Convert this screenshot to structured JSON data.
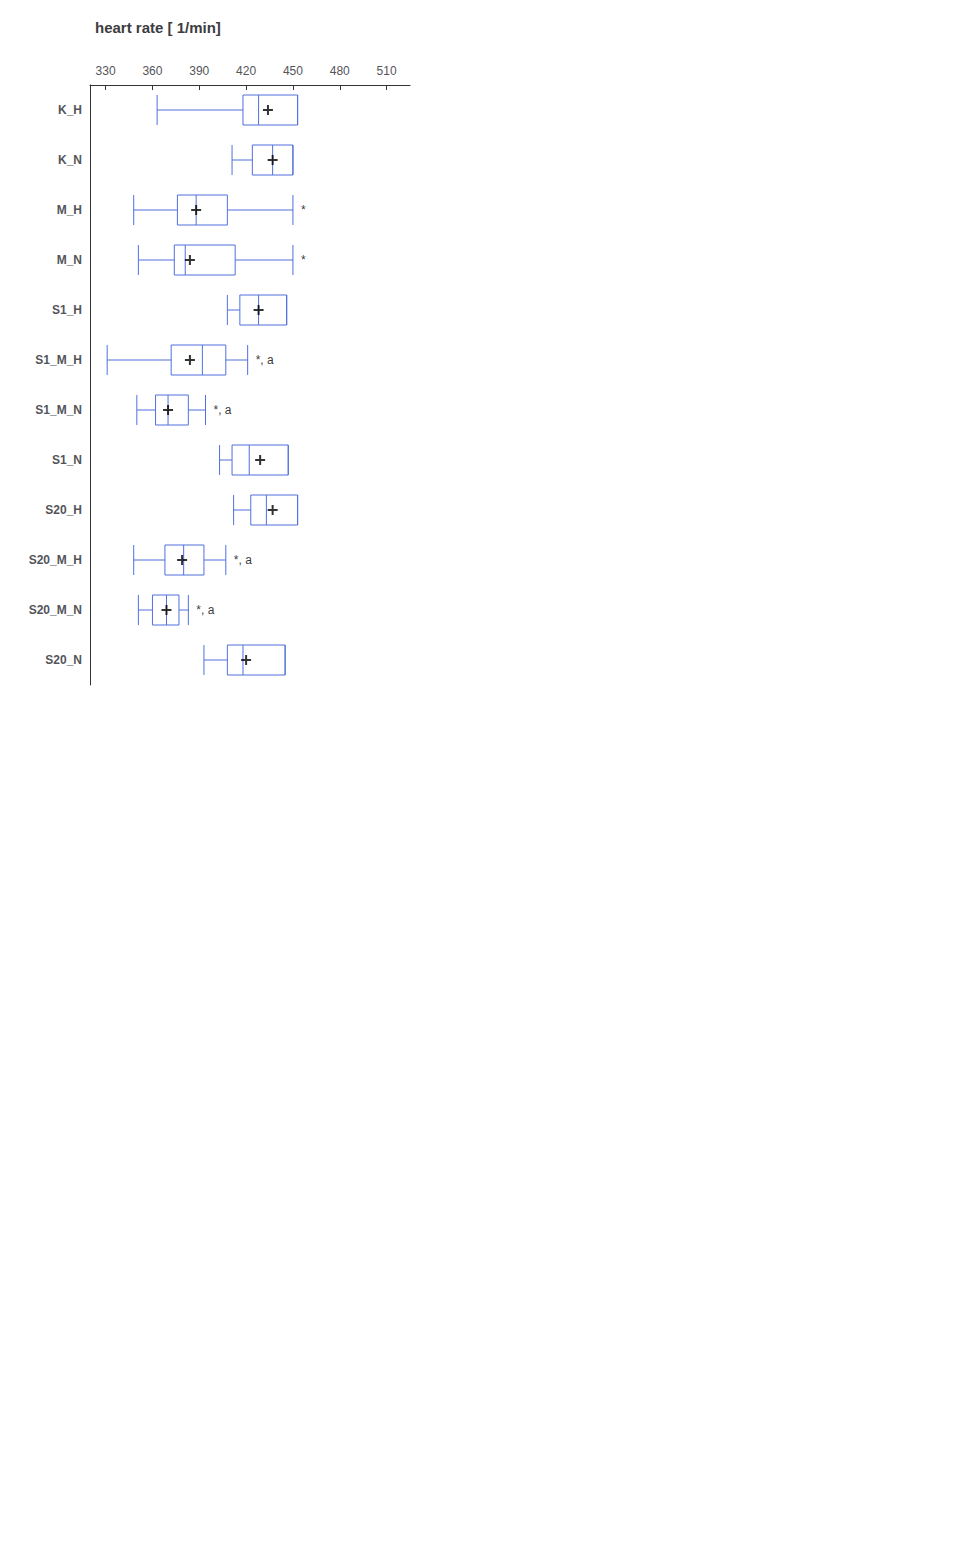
{
  "chart_data": {
    "type": "boxplot",
    "orientation": "horizontal",
    "title": "heart rate [ 1/min]",
    "categories": [
      "K_H",
      "K_N",
      "M_H",
      "M_N",
      "S1_H",
      "S1_M_H",
      "S1_M_N",
      "S1_N",
      "S20_H",
      "S20_M_H",
      "S20_M_N",
      "S20_N"
    ],
    "series": [
      {
        "type": "boxplot",
        "whislo": [
          363,
          411,
          348,
          351,
          408,
          331,
          350,
          403,
          412,
          348,
          351,
          393
        ],
        "q1": [
          418,
          424,
          376,
          374,
          416,
          372,
          362,
          411,
          423,
          368,
          360,
          408
        ],
        "median": [
          428,
          437,
          388,
          381,
          428,
          392,
          370,
          422,
          433,
          380,
          369,
          418
        ],
        "q3": [
          453,
          450,
          408,
          413,
          446,
          407,
          383,
          447,
          453,
          393,
          377,
          445
        ],
        "whishi": [
          453,
          450,
          450,
          450,
          446,
          421,
          394,
          447,
          453,
          407,
          383,
          445
        ]
      },
      {
        "type": "scatter",
        "marker": "plus",
        "color": "#000000",
        "values": [
          434,
          437,
          388,
          384,
          428,
          384,
          370,
          429,
          437,
          379,
          369,
          420
        ]
      }
    ],
    "annotations": [
      {
        "category": "M_H",
        "text": "*"
      },
      {
        "category": "M_N",
        "text": "*"
      },
      {
        "category": "S1_M_H",
        "text": "*, a"
      },
      {
        "category": "S1_M_N",
        "text": "*, a"
      },
      {
        "category": "S20_M_H",
        "text": "*, a"
      },
      {
        "category": "S20_M_N",
        "text": "*, a"
      }
    ],
    "xlim": [
      320,
      525
    ],
    "xticks": [
      330,
      360,
      390,
      420,
      450,
      480,
      510
    ],
    "grid": false
  }
}
